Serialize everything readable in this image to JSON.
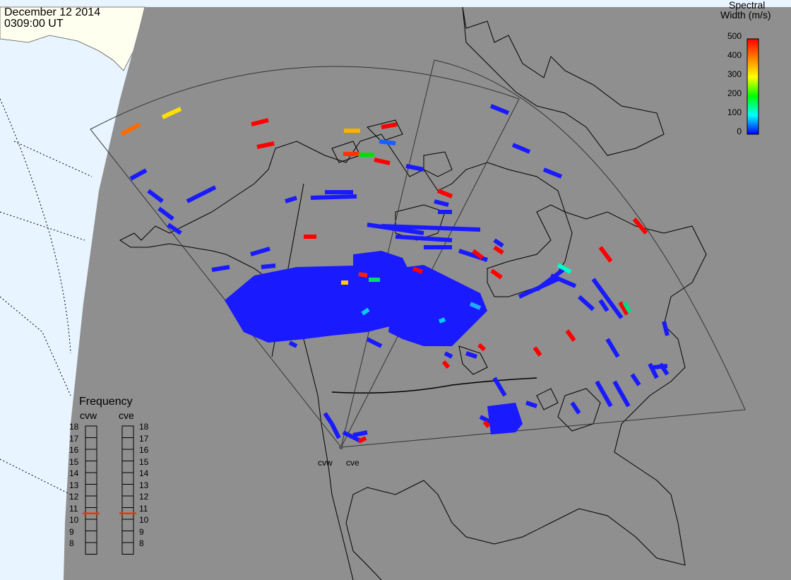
{
  "header": {
    "date": "December 12 2014",
    "time": "0309:00 UT"
  },
  "colorbar": {
    "title_line1": "Spectral",
    "title_line2": "Width (m/s)",
    "ticks": [
      "500",
      "400",
      "300",
      "200",
      "100",
      "0"
    ],
    "colors": [
      "#ff0000",
      "#ff8000",
      "#ffff00",
      "#00ff00",
      "#00ffff",
      "#0000ff"
    ]
  },
  "frequency_panel": {
    "title": "Frequency",
    "columns": [
      "cvw",
      "cve"
    ],
    "scale": [
      "18",
      "17",
      "16",
      "15",
      "14",
      "13",
      "12",
      "11",
      "10",
      "9",
      "8"
    ],
    "markers": [
      {
        "radar": "cvw",
        "value": 10.5
      },
      {
        "radar": "cve",
        "value": 10.5
      }
    ]
  },
  "radar_sites": [
    "cvw",
    "cve"
  ],
  "colors": {
    "ocean": "#e8f4ff",
    "land_pre": "#fffff0",
    "night": "#8f8f8f",
    "coast": "#000000",
    "fov": "#333333",
    "marker": "#ff3000"
  }
}
